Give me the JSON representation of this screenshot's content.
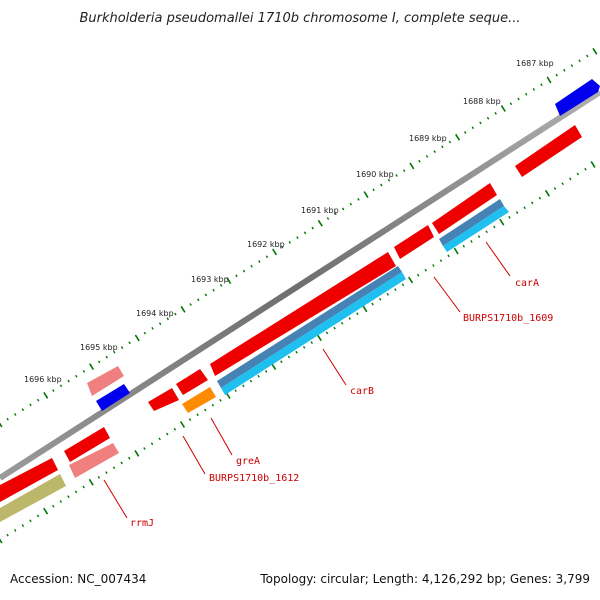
{
  "title": "Burkholderia pseudomallei 1710b chromosome I, complete seque...",
  "scale_labels": [
    "1687 kbp",
    "1688 kbp",
    "1689 kbp",
    "1690 kbp",
    "1691 kbp",
    "1692 kbp",
    "1693 kbp",
    "1694 kbp",
    "1695 kbp",
    "1696 kbp"
  ],
  "gene_labels": [
    "carA",
    "BURPS1710b_1609",
    "carB",
    "greA",
    "BURPS1710b_1612",
    "rrmJ"
  ],
  "footer": {
    "accession": "Accession: NC_007434",
    "topology": "Topology: circular; Length: 4,126,292 bp; Genes: 3,799"
  },
  "colors": {
    "backbone": "#808080",
    "forward_cds": "#ff0000",
    "reverse_cds": "#ff0000",
    "pseudo_or_rna": "#f08080",
    "gene_blue": "#0000ee",
    "steelblue_track": "#4682b4",
    "skyblue_track": "#00bfff",
    "orange_feature": "#ff8c00",
    "olive_feature": "#bdb76b",
    "tick_green": "#007700",
    "label_red": "#cc0000"
  }
}
